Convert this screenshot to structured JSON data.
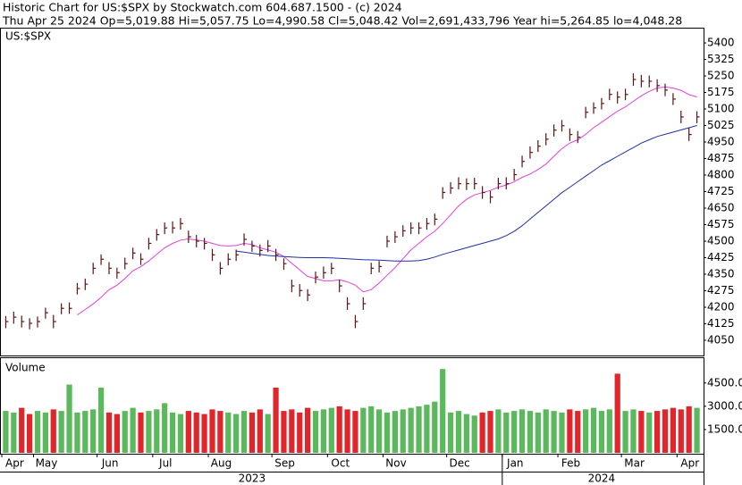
{
  "chart_data": {
    "type": "hlc",
    "title": "Historic Chart for US:$SPX by Stockwatch.com 604.687.1500 - (c) 2024",
    "subtitle": "Thu Apr 25 2024   Op=5,019.88   Hi=5,057.75   Lo=4,990.58   Cl=5,048.42   Vol=2,691,433,796   Year hi=5,264.85   lo=4,048.28",
    "label": "US:$SPX",
    "bar_color": "#5a1515",
    "categories": [
      "Apr",
      null,
      null,
      null,
      "May",
      null,
      null,
      null,
      null,
      null,
      null,
      null,
      "Jun",
      null,
      null,
      null,
      null,
      null,
      null,
      "Jul",
      null,
      null,
      null,
      null,
      null,
      null,
      "Aug",
      null,
      null,
      null,
      null,
      null,
      null,
      null,
      "Sep",
      null,
      null,
      null,
      null,
      null,
      null,
      "Oct",
      null,
      null,
      null,
      null,
      null,
      null,
      "Nov",
      null,
      null,
      null,
      null,
      null,
      null,
      null,
      "Dec",
      null,
      null,
      null,
      null,
      null,
      null,
      "Jan",
      null,
      null,
      null,
      null,
      null,
      null,
      "Feb",
      null,
      null,
      null,
      null,
      null,
      null,
      null,
      "Mar",
      null,
      null,
      null,
      null,
      null,
      null,
      "Apr",
      null,
      null
    ],
    "years": [
      {
        "label": "2023",
        "from": 0
      },
      {
        "label": "2024",
        "from": 63
      }
    ],
    "high": [
      4160,
      4180,
      4162,
      4150,
      4158,
      4198,
      4165,
      4218,
      4222,
      4310,
      4330,
      4402,
      4440,
      4405,
      4380,
      4425,
      4470,
      4445,
      4515,
      4555,
      4585,
      4590,
      4605,
      4548,
      4528,
      4515,
      4465,
      4405,
      4445,
      4462,
      4535,
      4502,
      4485,
      4505,
      4465,
      4422,
      4325,
      4305,
      4282,
      4362,
      4385,
      4402,
      4325,
      4245,
      4165,
      4245,
      4402,
      4410,
      4525,
      4545,
      4572,
      4585,
      4585,
      4605,
      4625,
      4745,
      4768,
      4790,
      4785,
      4788,
      4750,
      4728,
      4788,
      4790,
      4828,
      4888,
      4930,
      4958,
      4990,
      5030,
      5050,
      5012,
      5000,
      5110,
      5130,
      5150,
      5192,
      5180,
      5192,
      5262,
      5255,
      5252,
      5235,
      5215,
      5172,
      5092,
      5015,
      5090
    ],
    "low": [
      4105,
      4125,
      4108,
      4100,
      4108,
      4148,
      4105,
      4168,
      4170,
      4258,
      4278,
      4350,
      4392,
      4350,
      4330,
      4372,
      4418,
      4392,
      4462,
      4502,
      4532,
      4535,
      4552,
      4492,
      4472,
      4462,
      4410,
      4348,
      4390,
      4410,
      4480,
      4452,
      4430,
      4450,
      4410,
      4370,
      4268,
      4248,
      4228,
      4308,
      4330,
      4350,
      4268,
      4188,
      4105,
      4188,
      4350,
      4358,
      4472,
      4492,
      4520,
      4532,
      4532,
      4552,
      4572,
      4692,
      4715,
      4735,
      4732,
      4735,
      4692,
      4672,
      4735,
      4735,
      4775,
      4835,
      4875,
      4905,
      4935,
      4975,
      4998,
      4955,
      4945,
      5058,
      5078,
      5098,
      5140,
      5125,
      5140,
      5205,
      5198,
      5198,
      5178,
      5158,
      5118,
      5035,
      4955,
      5035
    ],
    "close": [
      4135,
      4155,
      4135,
      4127,
      4135,
      4175,
      4135,
      4195,
      4195,
      4285,
      4305,
      4377,
      4418,
      4377,
      4357,
      4398,
      4446,
      4418,
      4490,
      4530,
      4560,
      4560,
      4580,
      4520,
      4500,
      4490,
      4438,
      4377,
      4418,
      4438,
      4508,
      4478,
      4458,
      4478,
      4438,
      4398,
      4297,
      4276,
      4256,
      4337,
      4357,
      4377,
      4297,
      4216,
      4135,
      4216,
      4377,
      4385,
      4500,
      4520,
      4547,
      4560,
      4560,
      4580,
      4600,
      4721,
      4741,
      4761,
      4761,
      4761,
      4721,
      4700,
      4761,
      4761,
      4802,
      4862,
      4903,
      4931,
      4963,
      5004,
      5024,
      4984,
      4972,
      5085,
      5105,
      5125,
      5166,
      5154,
      5166,
      5234,
      5226,
      5226,
      5206,
      5186,
      5145,
      5064,
      4984,
      5064
    ],
    "series": [
      {
        "color": "#e040d8",
        "values": [
          null,
          null,
          null,
          null,
          null,
          null,
          null,
          null,
          null,
          4165,
          4190,
          4215,
          4245,
          4280,
          4300,
          4330,
          4365,
          4385,
          4410,
          4440,
          4470,
          4490,
          4505,
          4510,
          4505,
          4500,
          4490,
          4480,
          4478,
          4480,
          4490,
          4485,
          4470,
          4460,
          4450,
          4430,
          4400,
          4370,
          4340,
          4330,
          4320,
          4320,
          4325,
          4315,
          4300,
          4270,
          4280,
          4310,
          4345,
          4380,
          4420,
          4460,
          4490,
          4520,
          4545,
          4580,
          4620,
          4660,
          4690,
          4710,
          4720,
          4730,
          4745,
          4755,
          4770,
          4790,
          4805,
          4825,
          4850,
          4885,
          4920,
          4945,
          4960,
          4985,
          5015,
          5040,
          5065,
          5090,
          5110,
          5135,
          5160,
          5180,
          5195,
          5200,
          5195,
          5185,
          5165,
          5155
        ]
      },
      {
        "color": "#1f2fa8",
        "values": [
          null,
          null,
          null,
          null,
          null,
          null,
          null,
          null,
          null,
          null,
          null,
          null,
          null,
          null,
          null,
          null,
          null,
          null,
          null,
          null,
          null,
          null,
          null,
          null,
          null,
          null,
          null,
          null,
          null,
          4455,
          4450,
          4445,
          4440,
          4435,
          4432,
          4430,
          4428,
          4426,
          4425,
          4425,
          4425,
          4424,
          4422,
          4420,
          4418,
          4416,
          4415,
          4414,
          4412,
          4410,
          4410,
          4410,
          4412,
          4418,
          4428,
          4440,
          4450,
          4460,
          4470,
          4480,
          4490,
          4500,
          4510,
          4525,
          4545,
          4570,
          4600,
          4630,
          4660,
          4690,
          4720,
          4745,
          4770,
          4795,
          4820,
          4845,
          4865,
          4885,
          4905,
          4925,
          4945,
          4960,
          4975,
          4985,
          4995,
          5005,
          5015,
          5025
        ]
      }
    ],
    "ylim": [
      3981,
      5465
    ],
    "yticks": [
      5400,
      5325,
      5250,
      5175,
      5100,
      5025,
      4950,
      4875,
      4800,
      4725,
      4650,
      4575,
      4500,
      4425,
      4350,
      4275,
      4200,
      4125,
      4050
    ],
    "volume": {
      "label": "Volume",
      "up_color": "#5cb85c",
      "down_color": "#e0262a",
      "values": [
        2700,
        2600,
        2900,
        2500,
        2700,
        2600,
        2800,
        2700,
        4400,
        2600,
        2700,
        2800,
        4200,
        2600,
        2500,
        2700,
        2900,
        2600,
        2700,
        2800,
        3200,
        2600,
        2500,
        2700,
        2600,
        2500,
        2800,
        2700,
        2600,
        2500,
        2700,
        2600,
        2800,
        2500,
        4200,
        2700,
        2800,
        2600,
        2900,
        2700,
        2800,
        2900,
        3000,
        2800,
        2700,
        2900,
        3000,
        2800,
        2600,
        2700,
        2800,
        2900,
        3000,
        3100,
        3300,
        5400,
        2600,
        2700,
        2500,
        2400,
        2600,
        2700,
        2800,
        2600,
        2700,
        2800,
        2700,
        2600,
        2800,
        2700,
        2600,
        2800,
        2700,
        2800,
        2900,
        2700,
        2800,
        5100,
        2700,
        2800,
        2700,
        2600,
        2700,
        2800,
        2900,
        2800,
        3000,
        2900
      ],
      "ylim": [
        0,
        6100
      ],
      "yticks": [
        {
          "value": 4500,
          "label": "4500.0"
        },
        {
          "value": 3000,
          "label": "3000.0"
        },
        {
          "value": 1500,
          "label": "1500.0"
        }
      ]
    }
  }
}
